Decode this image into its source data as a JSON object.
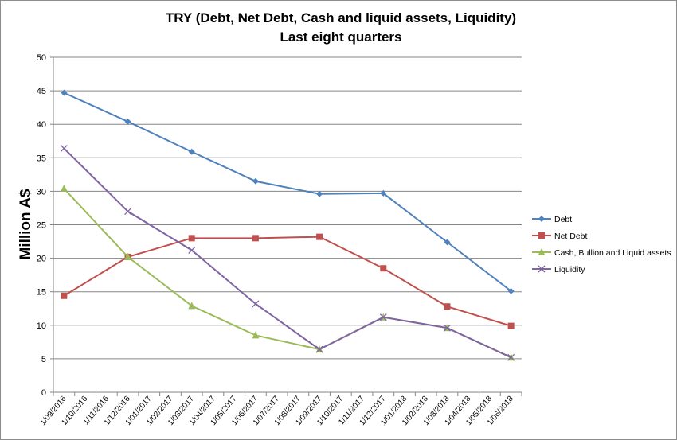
{
  "chart_data": {
    "type": "line",
    "title": "TRY  (Debt, Net Debt, Cash and liquid assets, Liquidity)",
    "subtitle": "Last  eight quarters",
    "ylabel": "Million A$",
    "xlabel": "",
    "ylim": [
      0,
      50
    ],
    "yticks": [
      0,
      5,
      10,
      15,
      20,
      25,
      30,
      35,
      40,
      45,
      50
    ],
    "grid": true,
    "legend_position": "right",
    "categories": [
      "1/09/2016",
      "1/10/2016",
      "1/11/2016",
      "1/12/2016",
      "1/01/2017",
      "1/02/2017",
      "1/03/2017",
      "1/04/2017",
      "1/05/2017",
      "1/06/2017",
      "1/07/2017",
      "1/08/2017",
      "1/09/2017",
      "1/10/2017",
      "1/11/2017",
      "1/12/2017",
      "1/01/2018",
      "1/02/2018",
      "1/03/2018",
      "1/04/2018",
      "1/05/2018",
      "1/06/2018"
    ],
    "series": [
      {
        "name": "Debt",
        "color": "#4f81bd",
        "marker": "diamond",
        "points": [
          [
            0,
            44.7
          ],
          [
            3,
            40.4
          ],
          [
            6,
            35.9
          ],
          [
            9,
            31.5
          ],
          [
            12,
            29.6
          ],
          [
            15,
            29.7
          ],
          [
            18,
            22.4
          ],
          [
            21,
            15.1
          ]
        ]
      },
      {
        "name": "Net Debt",
        "color": "#c0504d",
        "marker": "square",
        "points": [
          [
            0,
            14.4
          ],
          [
            3,
            20.2
          ],
          [
            6,
            23.0
          ],
          [
            9,
            23.0
          ],
          [
            12,
            23.2
          ],
          [
            15,
            18.5
          ],
          [
            18,
            12.8
          ],
          [
            21,
            9.9
          ]
        ]
      },
      {
        "name": "Cash, Bullion and Liquid assets",
        "color": "#9bbb59",
        "marker": "triangle",
        "points": [
          [
            0,
            30.4
          ],
          [
            3,
            20.2
          ],
          [
            6,
            12.9
          ],
          [
            9,
            8.5
          ],
          [
            12,
            6.4
          ],
          [
            15,
            11.2
          ],
          [
            18,
            9.6
          ],
          [
            21,
            5.2
          ]
        ]
      },
      {
        "name": "Liquidity",
        "color": "#8064a2",
        "marker": "x",
        "points": [
          [
            0,
            36.4
          ],
          [
            3,
            27.0
          ],
          [
            6,
            21.2
          ],
          [
            9,
            13.2
          ],
          [
            12,
            6.4
          ],
          [
            15,
            11.2
          ],
          [
            18,
            9.6
          ],
          [
            21,
            5.2
          ]
        ]
      }
    ]
  }
}
